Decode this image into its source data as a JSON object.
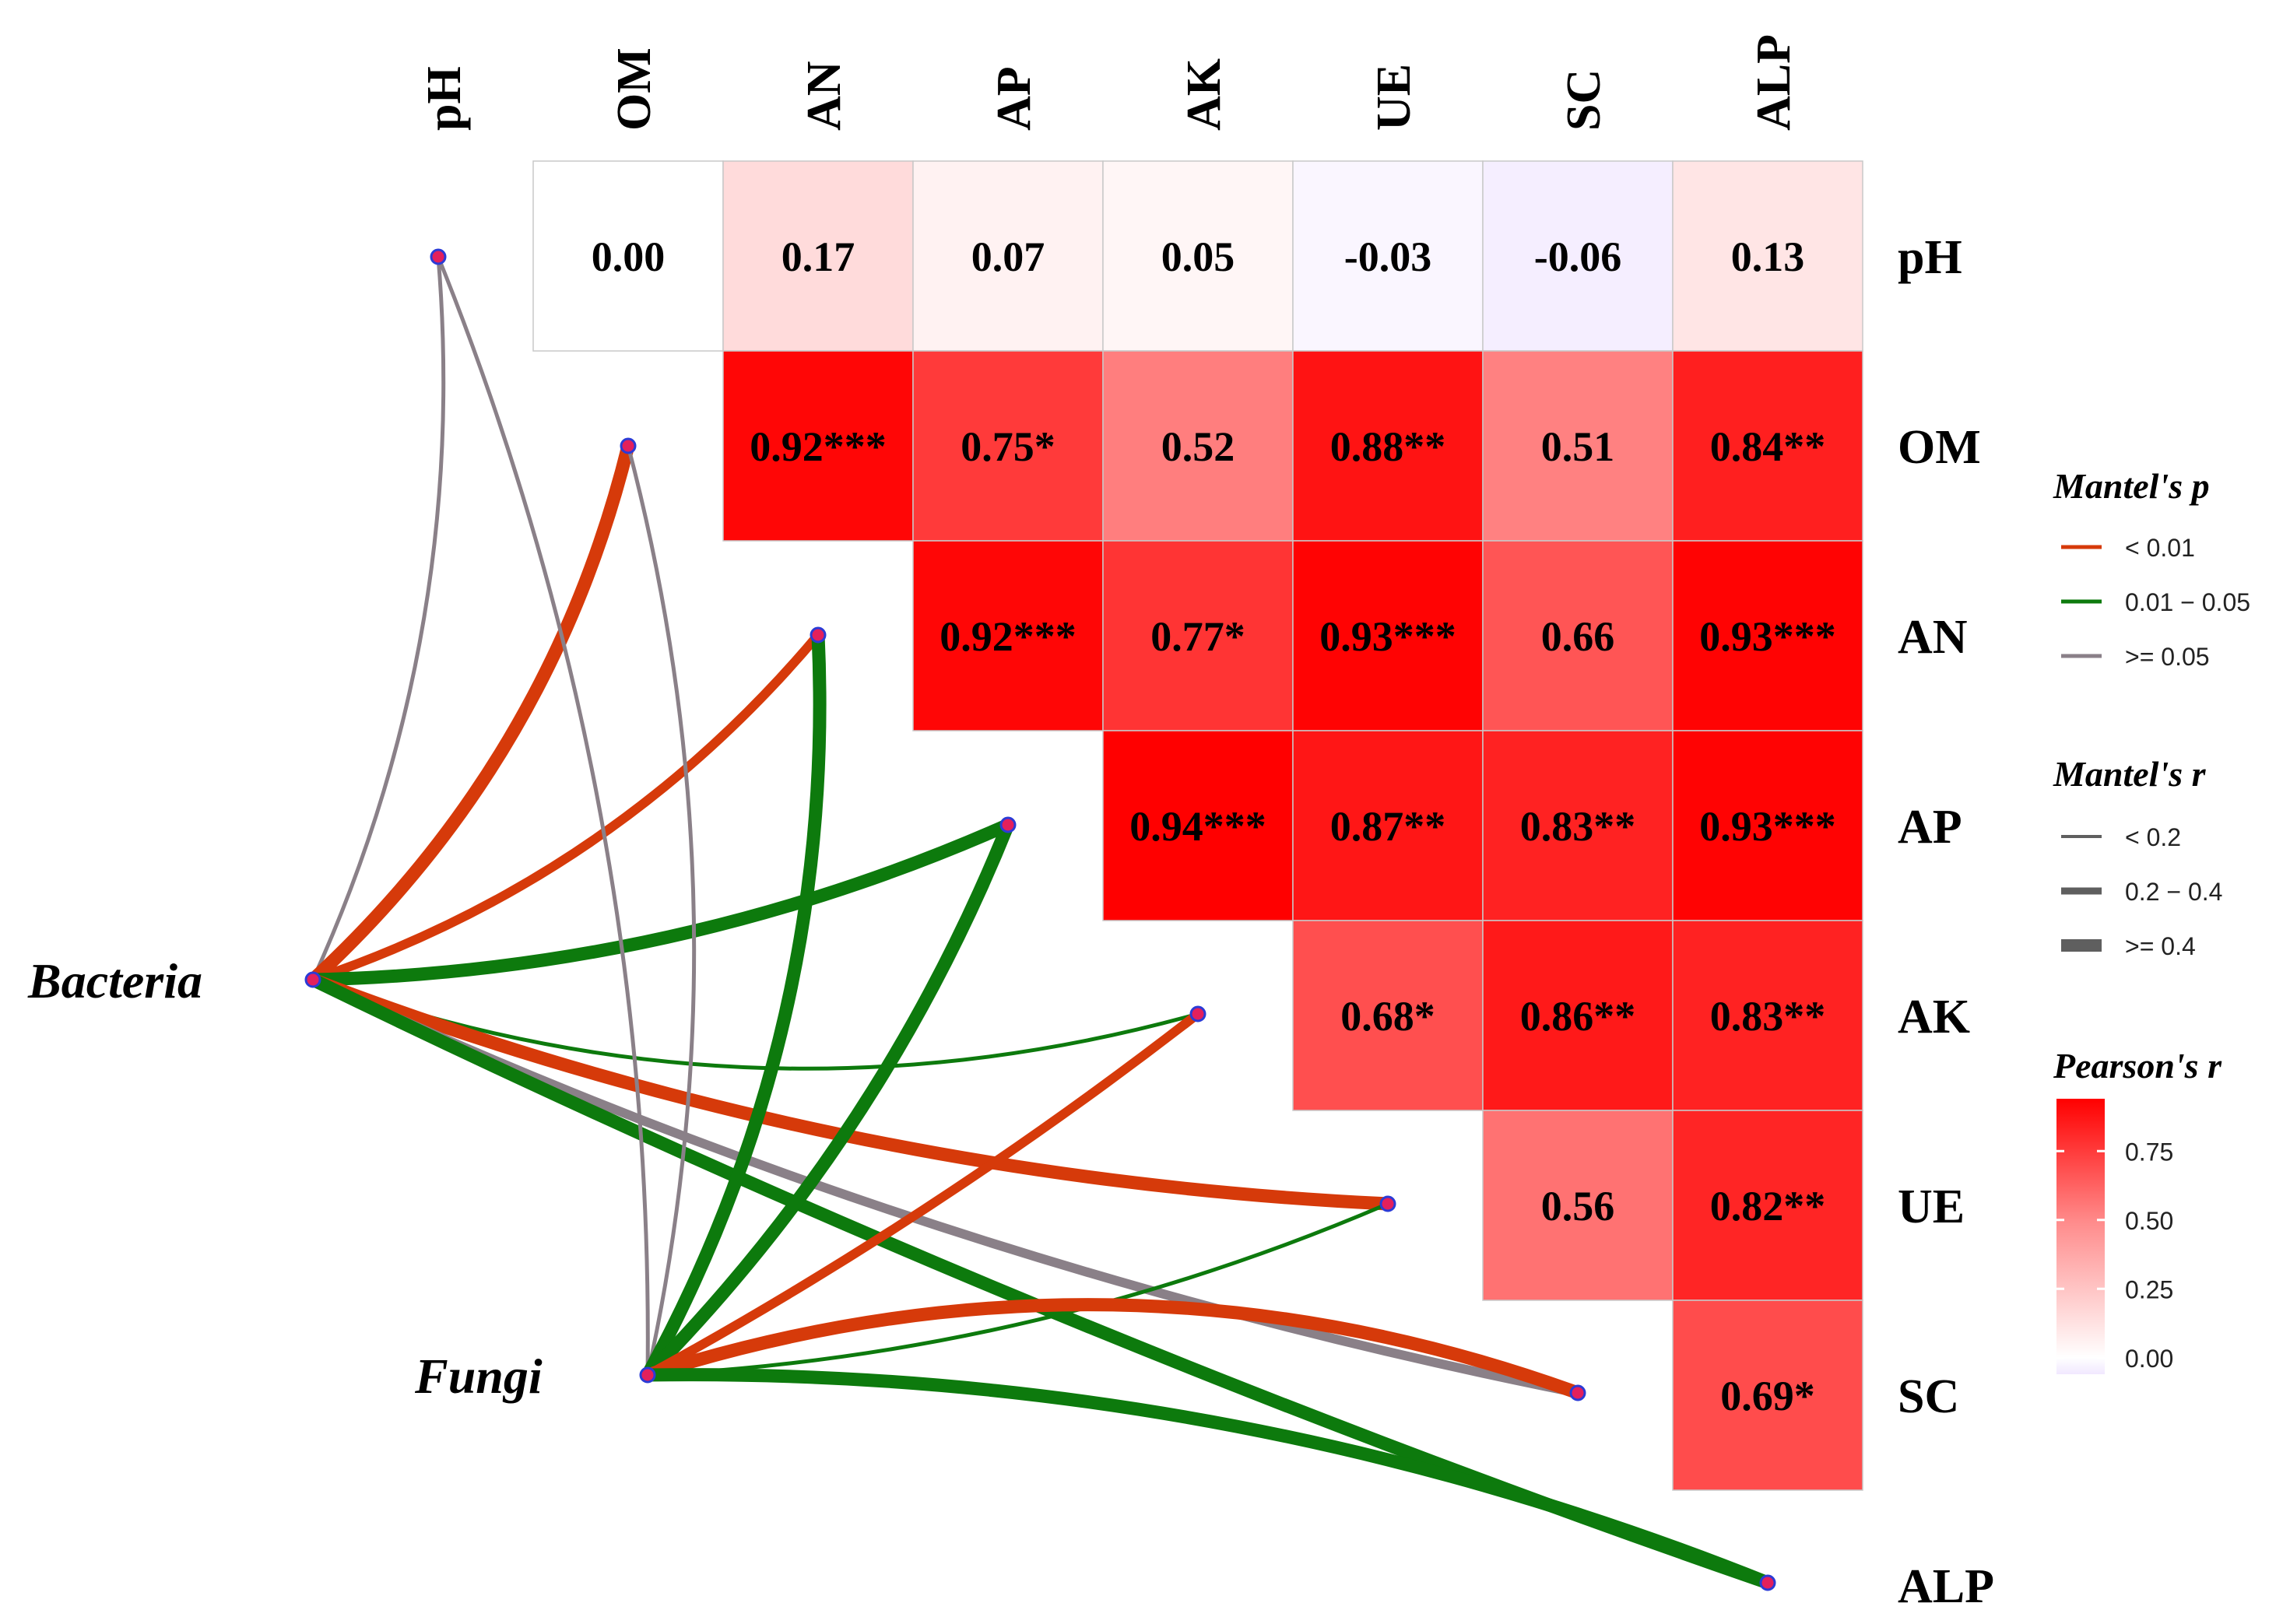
{
  "chart_data": {
    "type": "heatmap",
    "title": "",
    "variables": [
      "pH",
      "OM",
      "AN",
      "AP",
      "AK",
      "UE",
      "SC",
      "ALP"
    ],
    "pearson": [
      {
        "row": "pH",
        "col": "OM",
        "r": 0.0,
        "label": "0.00"
      },
      {
        "row": "pH",
        "col": "AN",
        "r": 0.17,
        "label": "0.17"
      },
      {
        "row": "pH",
        "col": "AP",
        "r": 0.07,
        "label": "0.07"
      },
      {
        "row": "pH",
        "col": "AK",
        "r": 0.05,
        "label": "0.05"
      },
      {
        "row": "pH",
        "col": "UE",
        "r": -0.03,
        "label": "-0.03"
      },
      {
        "row": "pH",
        "col": "SC",
        "r": -0.06,
        "label": "-0.06"
      },
      {
        "row": "pH",
        "col": "ALP",
        "r": 0.13,
        "label": "0.13"
      },
      {
        "row": "OM",
        "col": "AN",
        "r": 0.92,
        "label": "0.92***"
      },
      {
        "row": "OM",
        "col": "AP",
        "r": 0.75,
        "label": "0.75*"
      },
      {
        "row": "OM",
        "col": "AK",
        "r": 0.52,
        "label": "0.52"
      },
      {
        "row": "OM",
        "col": "UE",
        "r": 0.88,
        "label": "0.88**"
      },
      {
        "row": "OM",
        "col": "SC",
        "r": 0.51,
        "label": "0.51"
      },
      {
        "row": "OM",
        "col": "ALP",
        "r": 0.84,
        "label": "0.84**"
      },
      {
        "row": "AN",
        "col": "AP",
        "r": 0.92,
        "label": "0.92***"
      },
      {
        "row": "AN",
        "col": "AK",
        "r": 0.77,
        "label": "0.77*"
      },
      {
        "row": "AN",
        "col": "UE",
        "r": 0.93,
        "label": "0.93***"
      },
      {
        "row": "AN",
        "col": "SC",
        "r": 0.66,
        "label": "0.66"
      },
      {
        "row": "AN",
        "col": "ALP",
        "r": 0.93,
        "label": "0.93***"
      },
      {
        "row": "AP",
        "col": "AK",
        "r": 0.94,
        "label": "0.94***"
      },
      {
        "row": "AP",
        "col": "UE",
        "r": 0.87,
        "label": "0.87**"
      },
      {
        "row": "AP",
        "col": "SC",
        "r": 0.83,
        "label": "0.83**"
      },
      {
        "row": "AP",
        "col": "ALP",
        "r": 0.93,
        "label": "0.93***"
      },
      {
        "row": "AK",
        "col": "UE",
        "r": 0.68,
        "label": "0.68*"
      },
      {
        "row": "AK",
        "col": "SC",
        "r": 0.86,
        "label": "0.86**"
      },
      {
        "row": "AK",
        "col": "ALP",
        "r": 0.83,
        "label": "0.83**"
      },
      {
        "row": "UE",
        "col": "SC",
        "r": 0.56,
        "label": "0.56"
      },
      {
        "row": "UE",
        "col": "ALP",
        "r": 0.82,
        "label": "0.82**"
      },
      {
        "row": "SC",
        "col": "ALP",
        "r": 0.69,
        "label": "0.69*"
      }
    ],
    "sources": [
      "Bacteria",
      "Fungi"
    ],
    "mantel_links": [
      {
        "from": "Bacteria",
        "to": "pH",
        "p_class": ">= 0.05",
        "r_class": "< 0.2"
      },
      {
        "from": "Bacteria",
        "to": "OM",
        "p_class": "< 0.01",
        "r_class": ">= 0.4"
      },
      {
        "from": "Bacteria",
        "to": "AN",
        "p_class": "< 0.01",
        "r_class": "0.2 - 0.4"
      },
      {
        "from": "Bacteria",
        "to": "AP",
        "p_class": "0.01 - 0.05",
        "r_class": ">= 0.4"
      },
      {
        "from": "Bacteria",
        "to": "AK",
        "p_class": "0.01 - 0.05",
        "r_class": "< 0.2"
      },
      {
        "from": "Bacteria",
        "to": "UE",
        "p_class": "< 0.01",
        "r_class": ">= 0.4"
      },
      {
        "from": "Bacteria",
        "to": "SC",
        "p_class": ">= 0.05",
        "r_class": "0.2 - 0.4"
      },
      {
        "from": "Bacteria",
        "to": "ALP",
        "p_class": "0.01 - 0.05",
        "r_class": ">= 0.4"
      },
      {
        "from": "Fungi",
        "to": "pH",
        "p_class": ">= 0.05",
        "r_class": "< 0.2"
      },
      {
        "from": "Fungi",
        "to": "OM",
        "p_class": ">= 0.05",
        "r_class": "< 0.2"
      },
      {
        "from": "Fungi",
        "to": "AN",
        "p_class": "0.01 - 0.05",
        "r_class": ">= 0.4"
      },
      {
        "from": "Fungi",
        "to": "AP",
        "p_class": "0.01 - 0.05",
        "r_class": ">= 0.4"
      },
      {
        "from": "Fungi",
        "to": "AK",
        "p_class": "< 0.01",
        "r_class": "0.2 - 0.4"
      },
      {
        "from": "Fungi",
        "to": "UE",
        "p_class": "0.01 - 0.05",
        "r_class": "< 0.2"
      },
      {
        "from": "Fungi",
        "to": "SC",
        "p_class": "< 0.01",
        "r_class": ">= 0.4"
      },
      {
        "from": "Fungi",
        "to": "ALP",
        "p_class": "0.01 - 0.05",
        "r_class": ">= 0.4"
      }
    ],
    "legend": {
      "mantel_p": {
        "title": "Mantel's p",
        "items": [
          {
            "label": "< 0.01",
            "color": "#d63a0a"
          },
          {
            "label": "0.01 − 0.05",
            "color": "#0d7a0d"
          },
          {
            "label": ">= 0.05",
            "color": "#8a8088"
          }
        ]
      },
      "mantel_r": {
        "title": "Mantel's r",
        "items": [
          {
            "label": "< 0.2"
          },
          {
            "label": "0.2 − 0.4"
          },
          {
            "label": ">= 0.4"
          }
        ]
      },
      "pearson_r": {
        "title": "Pearson's r",
        "ticks": [
          0.0,
          0.25,
          0.5,
          0.75
        ],
        "tick_labels": [
          "0.00",
          "0.25",
          "0.50",
          "0.75"
        ],
        "range": [
          -0.06,
          0.94
        ]
      }
    },
    "colors": {
      "high": "#ff0000",
      "low": "#ffffff",
      "negative": "#f1e8ff",
      "node_fill": "#e3205c",
      "node_stroke": "#2b3bd6"
    }
  }
}
